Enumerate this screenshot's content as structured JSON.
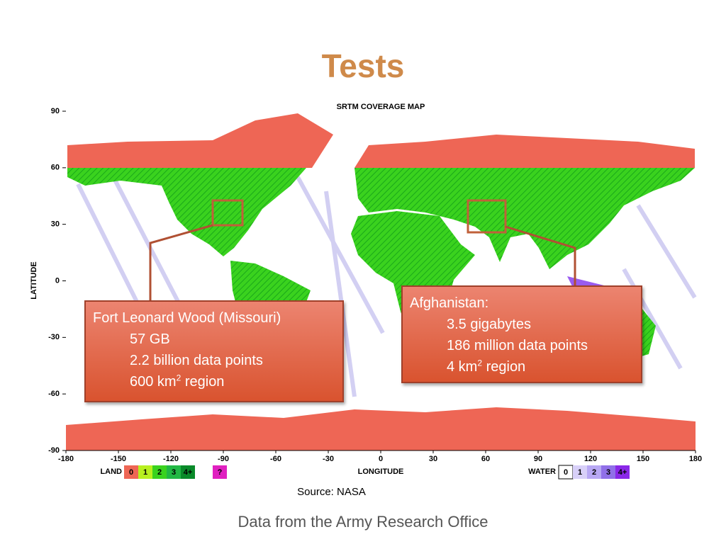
{
  "title": "Tests",
  "map": {
    "title": "SRTM COVERAGE MAP",
    "y_axis_label": "LATITUDE",
    "x_axis_label": "LONGITUDE",
    "lat_ticks": [
      90,
      60,
      30,
      0,
      -30,
      -60,
      -90
    ],
    "lon_ticks": [
      -180,
      -150,
      -120,
      -90,
      -60,
      -30,
      0,
      30,
      60,
      90,
      120,
      150,
      180
    ],
    "land_legend": {
      "label": "LAND",
      "keys": [
        "0",
        "1",
        "2",
        "3",
        "4+"
      ]
    },
    "unknown_key": "?",
    "water_legend": {
      "label": "WATER",
      "keys": [
        "0",
        "1",
        "2",
        "3",
        "4+"
      ]
    }
  },
  "callouts": [
    {
      "lines": [
        "Fort Leonard Wood (Missouri)",
        "57 GB",
        "2.2 billion data points",
        {
          "text": "600 km",
          "sup": "2",
          "rest": " region"
        }
      ]
    },
    {
      "lines": [
        "Afghanistan:",
        "3.5 gigabytes",
        "186 million data points",
        {
          "text": "4 km",
          "sup": "2",
          "rest": " region"
        }
      ]
    }
  ],
  "source": "Source: NASA",
  "footer": "Data from the Army Research Office"
}
